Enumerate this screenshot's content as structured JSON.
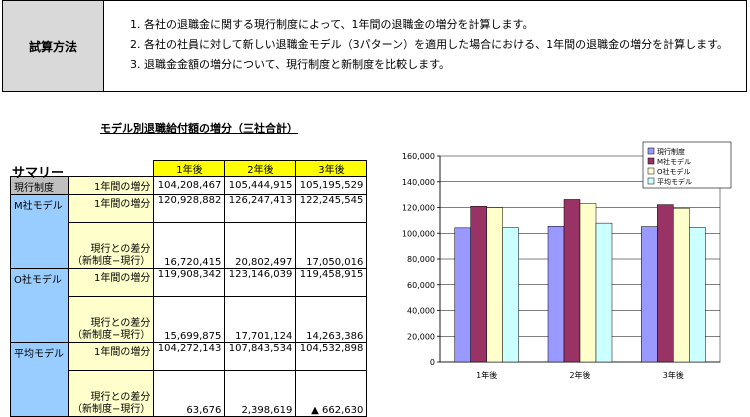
{
  "method": {
    "label": "試算方法",
    "steps": [
      "1. 各社の退職金に関する現行制度によって、1年間の退職金の増分を計算します。",
      "2. 各社の社員に対して新しい退職金モデル（3パターン）を適用した場合における、1年間の退職金の増分を計算します。",
      "3. 退職金金額の増分について、現行制度と新制度を比較します。"
    ]
  },
  "table": {
    "title": "モデル別退職給付額の増分（三社合計）",
    "summary_label": "サマリー",
    "headers": [
      "1年後",
      "2年後",
      "3年後"
    ],
    "groups": [
      {
        "name": "現行制度",
        "rows": [
          {
            "metric": "1年間の増分",
            "values": [
              "104,208,467",
              "105,444,915",
              "105,195,529"
            ]
          }
        ]
      },
      {
        "name": "M社モデル",
        "rows": [
          {
            "metric": "1年間の増分",
            "values": [
              "120,928,882",
              "126,247,413",
              "122,245,545"
            ]
          },
          {
            "metric": "現行との差分",
            "metric2": "（新制度−現行）",
            "values": [
              "16,720,415",
              "20,802,497",
              "17,050,016"
            ]
          }
        ]
      },
      {
        "name": "O社モデル",
        "rows": [
          {
            "metric": "1年間の増分",
            "values": [
              "119,908,342",
              "123,146,039",
              "119,458,915"
            ]
          },
          {
            "metric": "現行との差分",
            "metric2": "（新制度−現行）",
            "values": [
              "15,699,875",
              "17,701,124",
              "14,263,386"
            ]
          }
        ]
      },
      {
        "name": "平均モデル",
        "rows": [
          {
            "metric": "1年間の増分",
            "values": [
              "104,272,143",
              "107,843,534",
              "104,532,898"
            ]
          },
          {
            "metric": "現行との差分",
            "metric2": "（新制度−現行）",
            "values": [
              "63,676",
              "2,398,619",
              "▲ 662,630"
            ]
          }
        ]
      }
    ]
  },
  "chart_data": {
    "type": "bar",
    "categories": [
      "1年後",
      "2年後",
      "3年後"
    ],
    "series": [
      {
        "name": "現行制度",
        "values": [
          104208.467,
          105444.915,
          105195.529
        ],
        "color": "#9999ff"
      },
      {
        "name": "M社モデル",
        "values": [
          120928.882,
          126247.413,
          122245.545
        ],
        "color": "#993366"
      },
      {
        "name": "O社モデル",
        "values": [
          119908.342,
          123146.039,
          119458.915
        ],
        "color": "#ffffcc"
      },
      {
        "name": "平均モデル",
        "values": [
          104272.143,
          107843.534,
          104532.898
        ],
        "color": "#ccffff"
      }
    ],
    "ylim": [
      0,
      160000
    ],
    "yticks": [
      "0",
      "20,000",
      "40,000",
      "60,000",
      "80,000",
      "100,000",
      "120,000",
      "140,000",
      "160,000"
    ],
    "title": "",
    "xlabel": "",
    "ylabel": "",
    "grid": true,
    "legend": "top-right"
  }
}
